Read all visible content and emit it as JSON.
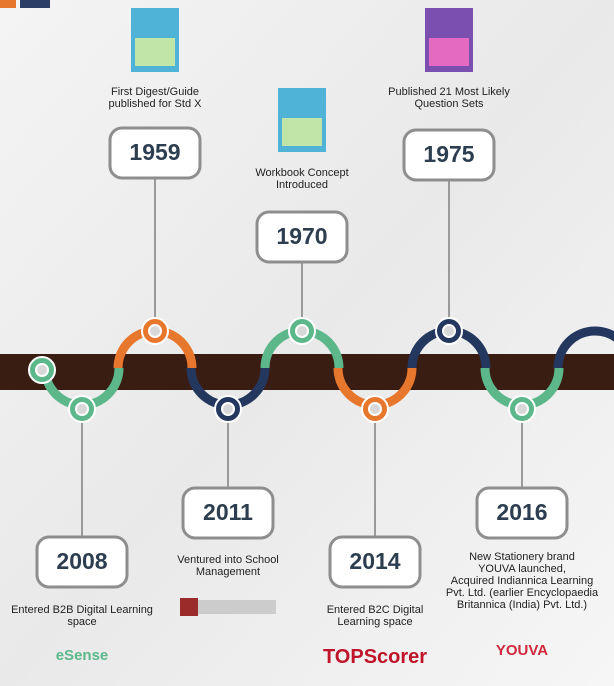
{
  "milestones": [
    {
      "year": "1959",
      "caption": [
        "First Digest/Guide",
        "published for Std X"
      ]
    },
    {
      "year": "1970",
      "caption": [
        "Workbook Concept",
        "Introduced"
      ]
    },
    {
      "year": "1975",
      "caption": [
        "Published 21 Most Likely",
        "Question Sets"
      ]
    },
    {
      "year": "2008",
      "caption": [
        "Entered B2B Digital Learning",
        "space"
      ],
      "logo": "eSense"
    },
    {
      "year": "2011",
      "caption": [
        "Ventured into School",
        "Management"
      ]
    },
    {
      "year": "2014",
      "caption": [
        "Entered B2C Digital",
        "Learning space"
      ],
      "logo": "TOPScorer"
    },
    {
      "year": "2016",
      "caption": [
        "New Stationery brand",
        "YOUVA launched,",
        "Acquired Indiannica Learning",
        "Pvt. Ltd. (earlier Encyclopaedia",
        "Britannica (India) Pvt. Ltd.)"
      ],
      "logo": "YOUVA"
    }
  ]
}
